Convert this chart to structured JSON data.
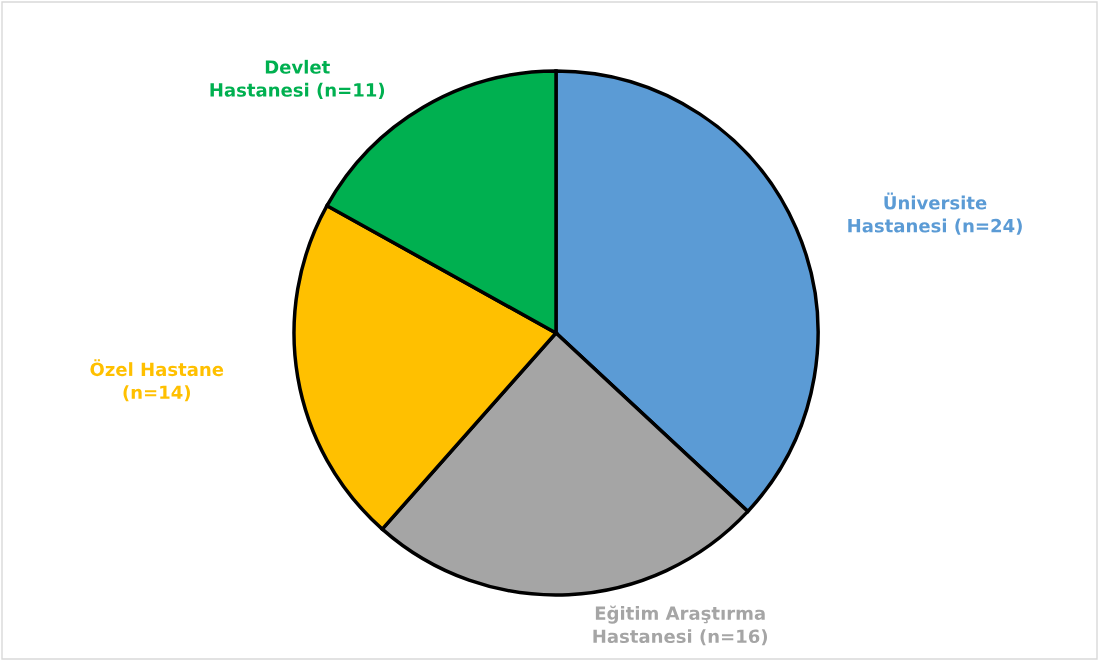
{
  "chart_data": {
    "type": "pie",
    "categories": [
      "Üniversite\nHastanesi (n=24)",
      "Eğitim Araştırma\nHastanesi (n=16)",
      "Özel Hastane\n(n=14)",
      "Devlet\nHastanesi (n=11)"
    ],
    "values": [
      24,
      16,
      14,
      11
    ],
    "colors": [
      "#5b9bd5",
      "#a5a5a5",
      "#ffc000",
      "#00b050"
    ],
    "legend": false
  }
}
